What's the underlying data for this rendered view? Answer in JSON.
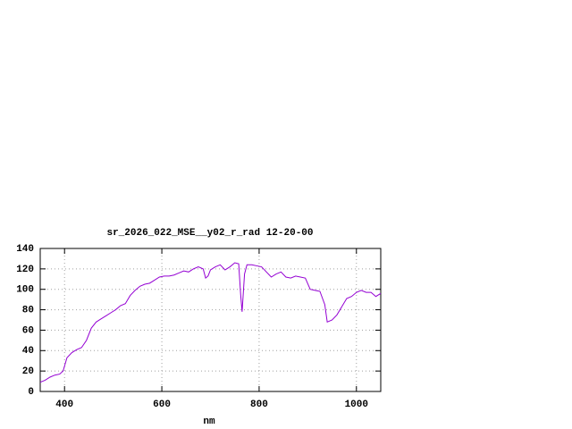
{
  "chart_data": {
    "type": "line",
    "title": "sr_2026_022_MSE__y02_r_rad 12-20-00",
    "xlabel": "nm",
    "x": [
      350,
      360,
      370,
      380,
      390,
      397,
      405,
      415,
      425,
      435,
      445,
      455,
      465,
      475,
      485,
      495,
      505,
      515,
      525,
      535,
      545,
      555,
      565,
      575,
      585,
      595,
      605,
      615,
      625,
      635,
      645,
      655,
      665,
      675,
      685,
      690,
      695,
      700,
      710,
      720,
      730,
      740,
      750,
      758,
      762,
      765,
      770,
      775,
      785,
      795,
      805,
      815,
      825,
      835,
      845,
      855,
      865,
      875,
      885,
      895,
      905,
      915,
      925,
      935,
      940,
      950,
      960,
      970,
      980,
      990,
      1000,
      1010,
      1020,
      1030,
      1040,
      1050
    ],
    "series": [
      {
        "color": "#9400d3",
        "values": [
          9,
          11,
          14,
          16,
          17,
          20,
          33,
          38,
          41,
          43,
          50,
          62,
          68,
          71,
          74,
          77,
          80,
          84,
          86,
          94,
          99,
          103,
          105,
          106,
          109,
          112,
          113,
          113,
          114,
          116,
          118,
          117,
          120,
          122,
          120,
          111,
          113,
          119,
          122,
          124,
          119,
          122,
          126,
          125,
          95,
          78,
          115,
          124,
          124,
          123,
          122,
          117,
          112,
          115,
          117,
          112,
          111,
          113,
          112,
          111,
          100,
          99,
          98,
          85,
          68,
          70,
          75,
          83,
          91,
          93,
          97,
          99,
          97,
          97,
          93,
          96
        ]
      }
    ],
    "xlim": [
      350,
      1050
    ],
    "ylim": [
      0,
      140
    ],
    "xticks": [
      400,
      600,
      800,
      1000
    ],
    "yticks": [
      0,
      20,
      40,
      60,
      80,
      100,
      120,
      140
    ],
    "grid": true
  }
}
